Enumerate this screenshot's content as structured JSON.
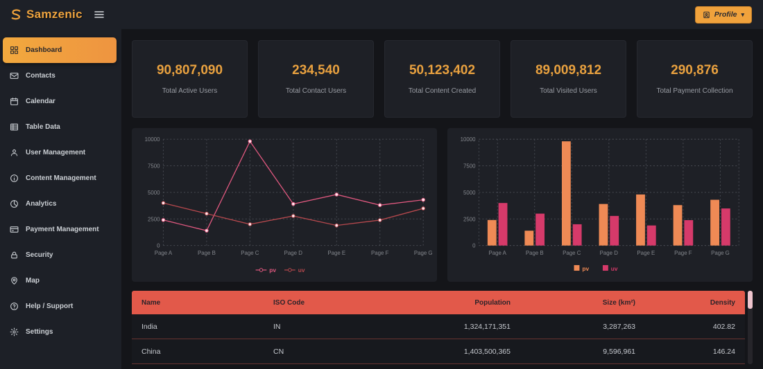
{
  "app": {
    "name": "Samzenic"
  },
  "topbar": {
    "profile": {
      "label": "Profile",
      "icon": "user-badge-icon",
      "chevron": "▾"
    },
    "menu_icon": "hamburger-icon",
    "logo_icon": "samzenic-s-icon"
  },
  "sidebar": {
    "items": [
      {
        "label": "Dashboard",
        "icon": "dashboard",
        "active": true
      },
      {
        "label": "Contacts",
        "icon": "contacts",
        "active": false
      },
      {
        "label": "Calendar",
        "icon": "calendar",
        "active": false
      },
      {
        "label": "Table Data",
        "icon": "table",
        "active": false
      },
      {
        "label": "User Management",
        "icon": "user",
        "active": false
      },
      {
        "label": "Content Management",
        "icon": "content",
        "active": false
      },
      {
        "label": "Analytics",
        "icon": "analytics",
        "active": false
      },
      {
        "label": "Payment Management",
        "icon": "payment",
        "active": false
      },
      {
        "label": "Security",
        "icon": "security",
        "active": false
      },
      {
        "label": "Map",
        "icon": "map",
        "active": false
      },
      {
        "label": "Help / Support",
        "icon": "help",
        "active": false
      },
      {
        "label": "Settings",
        "icon": "settings",
        "active": false
      }
    ]
  },
  "stats": [
    {
      "value": "90,807,090",
      "label": "Total Active Users"
    },
    {
      "value": "234,540",
      "label": "Total Contact Users"
    },
    {
      "value": "50,123,402",
      "label": "Total Content Created"
    },
    {
      "value": "89,009,812",
      "label": "Total Visited Users"
    },
    {
      "value": "290,876",
      "label": "Total Payment Collection"
    }
  ],
  "chart_data": [
    {
      "type": "line",
      "title": "",
      "categories": [
        "Page A",
        "Page B",
        "Page C",
        "Page D",
        "Page E",
        "Page F",
        "Page G"
      ],
      "series": [
        {
          "name": "pv",
          "color": "#e0587f",
          "values": [
            2400,
            1398,
            9800,
            3908,
            4800,
            3800,
            4300
          ]
        },
        {
          "name": "uv",
          "color": "#b5484d",
          "values": [
            4000,
            3000,
            2000,
            2780,
            1890,
            2390,
            3490
          ]
        }
      ],
      "ylim": [
        0,
        10000
      ],
      "yticks": [
        0,
        2500,
        5000,
        7500,
        10000
      ],
      "grid": true,
      "legend_position": "bottom"
    },
    {
      "type": "bar",
      "title": "",
      "categories": [
        "Page A",
        "Page B",
        "Page C",
        "Page D",
        "Page E",
        "Page F",
        "Page G"
      ],
      "series": [
        {
          "name": "pv",
          "color": "#ef8a55",
          "values": [
            2400,
            1398,
            9800,
            3908,
            4800,
            3800,
            4300
          ]
        },
        {
          "name": "uv",
          "color": "#d63a6a",
          "values": [
            4000,
            3000,
            2000,
            2780,
            1890,
            2390,
            3490
          ]
        }
      ],
      "ylim": [
        0,
        10000
      ],
      "yticks": [
        0,
        2500,
        5000,
        7500,
        10000
      ],
      "grid": true,
      "legend_position": "bottom"
    }
  ],
  "table": {
    "headers": [
      "Name",
      "ISO Code",
      "Population",
      "Size (km²)",
      "Density"
    ],
    "rows": [
      [
        "India",
        "IN",
        "1,324,171,351",
        "3,287,263",
        "402.82"
      ],
      [
        "China",
        "CN",
        "1,403,500,365",
        "9,596,961",
        "146.24"
      ]
    ]
  },
  "colors": {
    "accent": "#f0a23c",
    "stat_value": "#e9a13f",
    "table_header": "#e2594a",
    "panel_bg": "#1e2026",
    "page_bg": "#141519",
    "pv_line": "#e0587f",
    "uv_line": "#b5484d",
    "pv_bar": "#ef8a55",
    "uv_bar": "#d63a6a"
  }
}
